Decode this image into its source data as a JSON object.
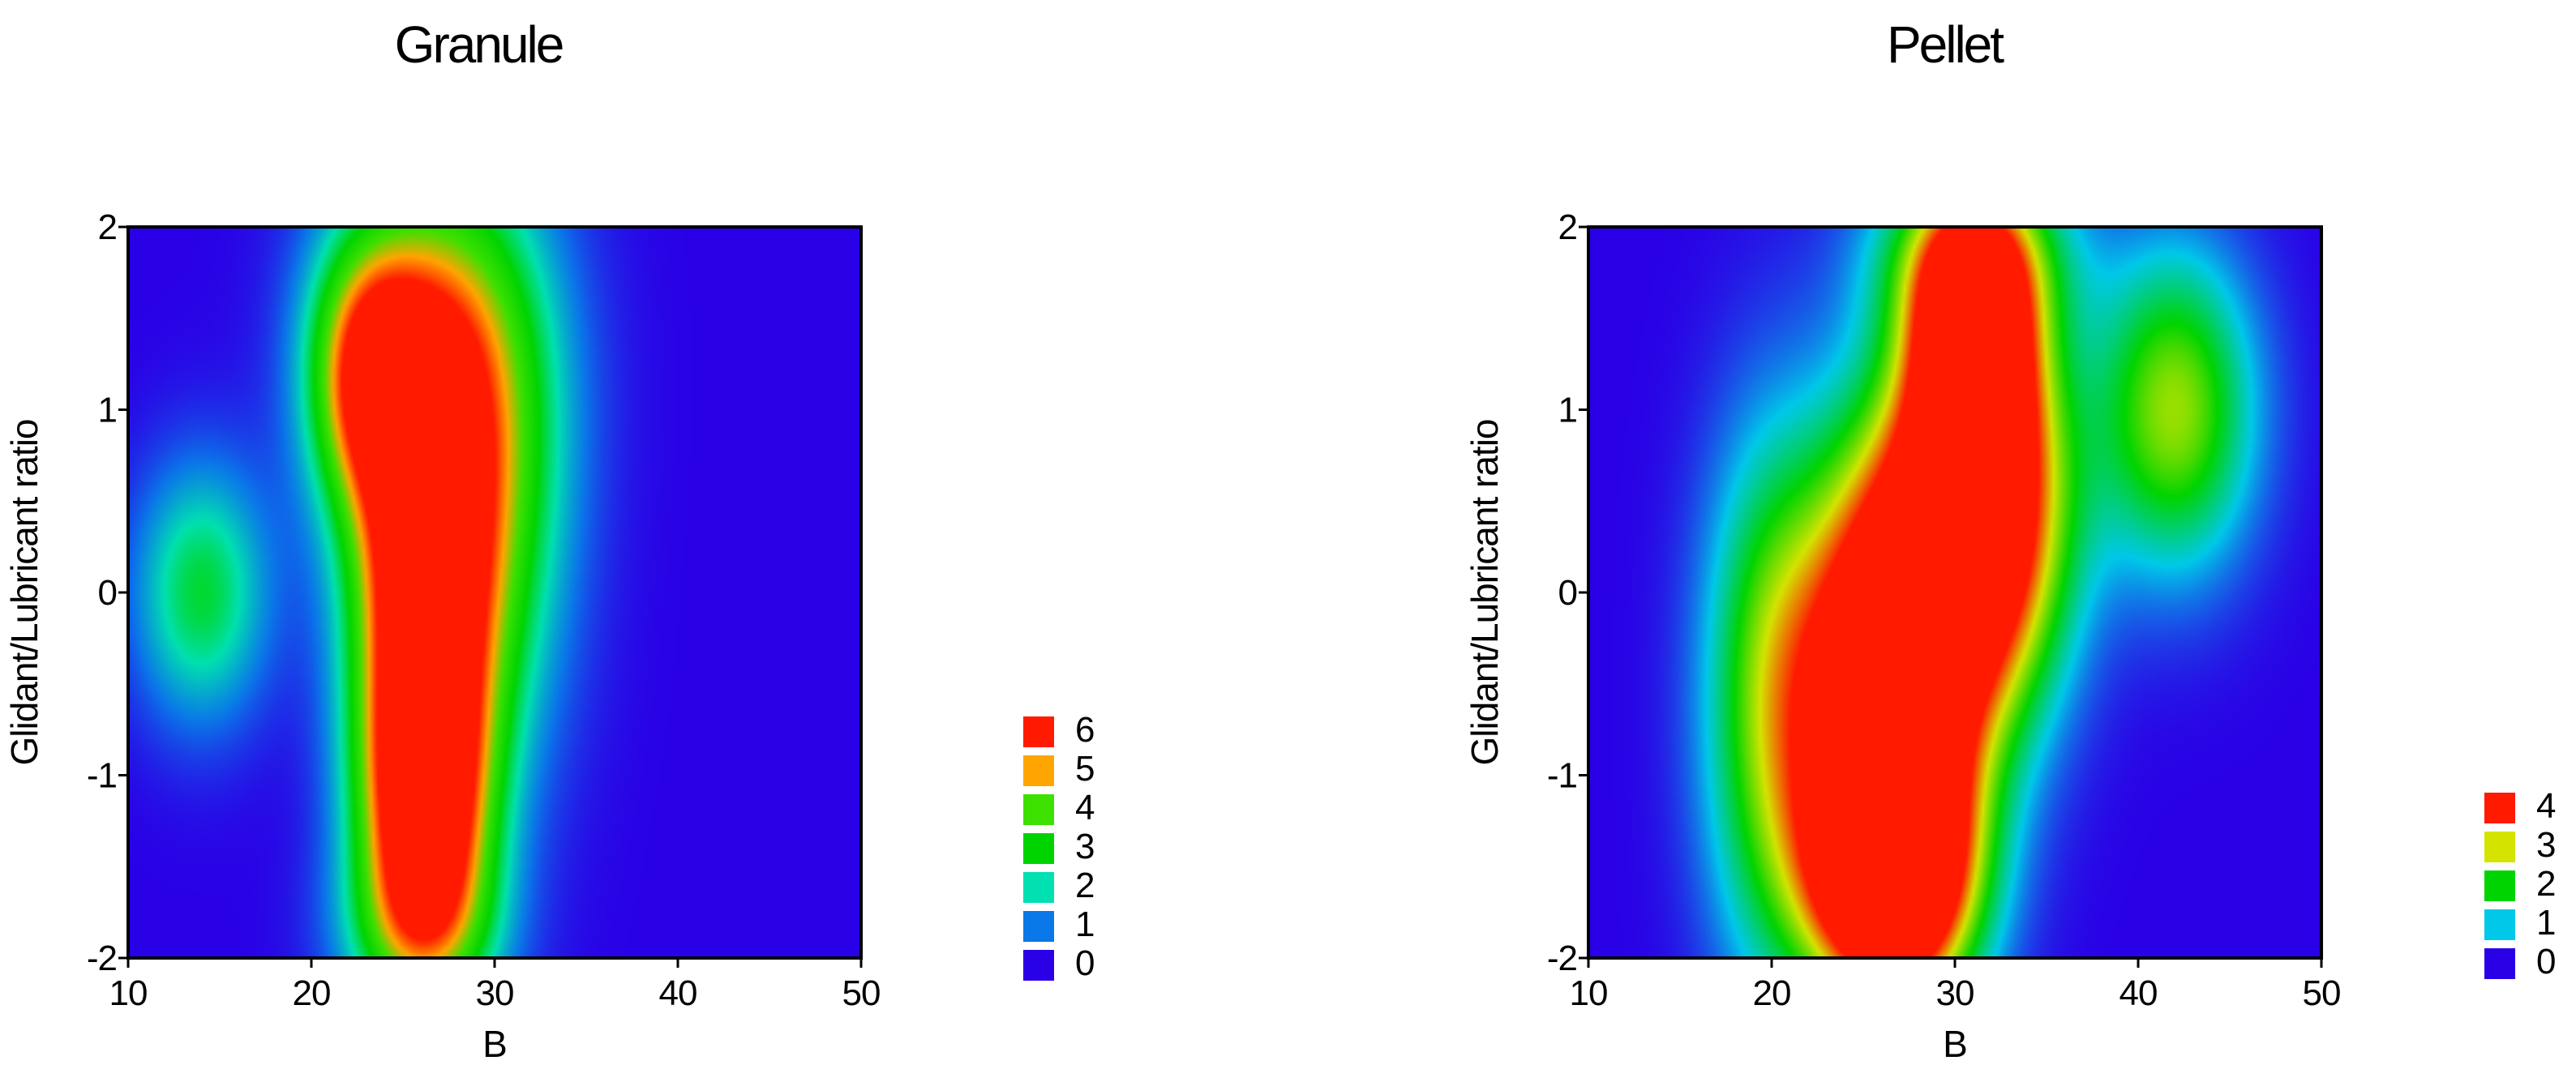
{
  "chart_data": [
    {
      "type": "heatmap",
      "title": "Granule",
      "xlabel": "B",
      "ylabel": "Glidant/Lubricant ratio",
      "xlim": [
        10,
        50
      ],
      "ylim": [
        -2,
        2
      ],
      "xticks": [
        "10",
        "20",
        "30",
        "40",
        "50"
      ],
      "yticks": [
        "2",
        "1",
        "0",
        "-1",
        "-2"
      ],
      "zmin": 0,
      "zmax": 6,
      "grid": false,
      "legend_position": "right",
      "legend": [
        {
          "label": "6",
          "color": "#ff1a00"
        },
        {
          "label": "5",
          "color": "#ffa500"
        },
        {
          "label": "4",
          "color": "#3ee000"
        },
        {
          "label": "3",
          "color": "#00d400"
        },
        {
          "label": "2",
          "color": "#00e0b0"
        },
        {
          "label": "1",
          "color": "#0a78e8"
        },
        {
          "label": "0",
          "color": "#2a00e6"
        }
      ],
      "peaks": [
        {
          "x": 26.0,
          "y": -0.1,
          "value": 7.2,
          "sx": 2.6,
          "sy": 0.95
        },
        {
          "x": 26.2,
          "y": -1.2,
          "value": 5.0,
          "sx": 2.4,
          "sy": 0.55
        },
        {
          "x": 23.0,
          "y": 1.2,
          "value": 4.5,
          "sx": 2.2,
          "sy": 0.5
        },
        {
          "x": 27.0,
          "y": 1.35,
          "value": 3.5,
          "sx": 4.0,
          "sy": 0.75
        },
        {
          "x": 29.5,
          "y": 0.4,
          "value": 2.8,
          "sx": 3.2,
          "sy": 1.0
        },
        {
          "x": 14.0,
          "y": 0.0,
          "value": 2.7,
          "sx": 2.6,
          "sy": 0.5
        },
        {
          "x": 26.0,
          "y": -1.85,
          "value": 2.5,
          "sx": 3.0,
          "sy": 0.35
        }
      ]
    },
    {
      "type": "heatmap",
      "title": "Pellet",
      "xlabel": "B",
      "ylabel": "Glidant/Lubricant ratio",
      "xlim": [
        10,
        50
      ],
      "ylim": [
        -2,
        2
      ],
      "xticks": [
        "10",
        "20",
        "30",
        "40",
        "50"
      ],
      "yticks": [
        "2",
        "1",
        "0",
        "-1",
        "-2"
      ],
      "zmin": 0,
      "zmax": 4,
      "grid": false,
      "legend_position": "right",
      "legend": [
        {
          "label": "4",
          "color": "#ff1a00"
        },
        {
          "label": "3",
          "color": "#d4e400"
        },
        {
          "label": "2",
          "color": "#00d400"
        },
        {
          "label": "1",
          "color": "#00c8e8"
        },
        {
          "label": "0",
          "color": "#2a00e6"
        }
      ],
      "peaks": [
        {
          "x": 26.5,
          "y": -0.6,
          "value": 6.5,
          "sx": 3.3,
          "sy": 0.95
        },
        {
          "x": 31.5,
          "y": 0.45,
          "value": 5.4,
          "sx": 3.2,
          "sy": 0.75
        },
        {
          "x": 31.0,
          "y": 1.35,
          "value": 4.6,
          "sx": 2.2,
          "sy": 0.5
        },
        {
          "x": 26.5,
          "y": -1.55,
          "value": 4.6,
          "sx": 3.0,
          "sy": 0.45
        },
        {
          "x": 42.0,
          "y": 1.0,
          "value": 2.7,
          "sx": 3.0,
          "sy": 0.6
        },
        {
          "x": 20.0,
          "y": -0.6,
          "value": 2.4,
          "sx": 2.6,
          "sy": 1.0
        },
        {
          "x": 31.0,
          "y": 1.85,
          "value": 2.2,
          "sx": 3.6,
          "sy": 0.35
        }
      ]
    }
  ]
}
